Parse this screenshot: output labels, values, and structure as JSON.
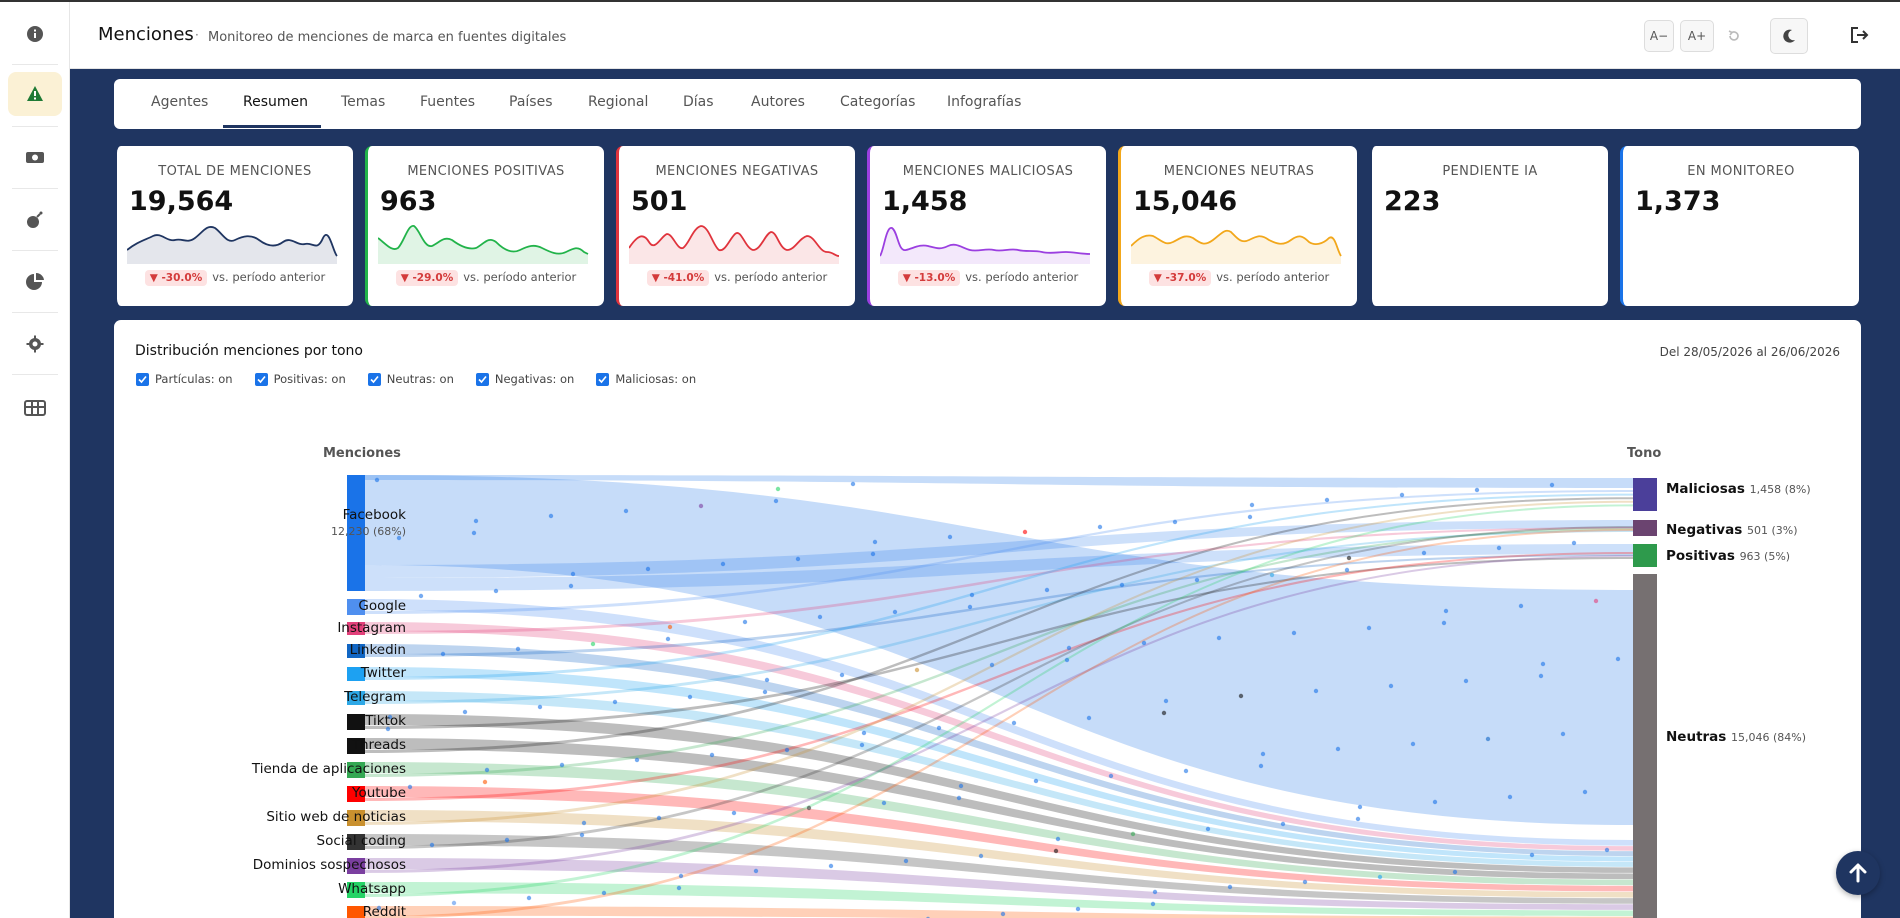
{
  "header": {
    "title": "Menciones",
    "subtitle": "Monitoreo de menciones de marca en fuentes digitales",
    "font_decrease": "A−",
    "font_increase": "A+"
  },
  "sidebar": {
    "items": [
      {
        "icon": "info-icon"
      },
      {
        "icon": "alert-triangle-icon",
        "active": true
      },
      {
        "icon": "money-icon"
      },
      {
        "icon": "bomb-icon"
      },
      {
        "icon": "pie-chart-icon"
      },
      {
        "icon": "gear-icon"
      },
      {
        "icon": "globe-table-icon"
      }
    ]
  },
  "tabs": [
    "Agentes",
    "Resumen",
    "Temas",
    "Fuentes",
    "Países",
    "Regional",
    "Días",
    "Autores",
    "Categorías",
    "Infografías"
  ],
  "active_tab": "Resumen",
  "kpis": [
    {
      "label": "TOTAL DE MENCIONES",
      "value": "19,564",
      "delta": "▼ -30.0%",
      "delta_text": "vs. período anterior",
      "color": "#1f3561"
    },
    {
      "label": "MENCIONES POSITIVAS",
      "value": "963",
      "delta": "▼ -29.0%",
      "delta_text": "vs. período anterior",
      "color": "#22b34a"
    },
    {
      "label": "MENCIONES NEGATIVAS",
      "value": "501",
      "delta": "▼ -41.0%",
      "delta_text": "vs. período anterior",
      "color": "#e0343d"
    },
    {
      "label": "MENCIONES MALICIOSAS",
      "value": "1,458",
      "delta": "▼ -13.0%",
      "delta_text": "vs. período anterior",
      "color": "#9b3fe0"
    },
    {
      "label": "MENCIONES NEUTRAS",
      "value": "15,046",
      "delta": "▼ -37.0%",
      "delta_text": "vs. período anterior",
      "color": "#f2a71b"
    },
    {
      "label": "PENDIENTE IA",
      "value": "223",
      "color": "#1f3561"
    },
    {
      "label": "EN MONITOREO",
      "value": "1,373",
      "color": "#1a73e8"
    }
  ],
  "panel": {
    "title": "Distribución menciones por tono",
    "date_range": "Del 28/05/2026 al 26/06/2026",
    "checks": [
      "Partículas: on",
      "Positivas: on",
      "Neutras: on",
      "Negativas: on",
      "Maliciosas: on"
    ],
    "left_header": "Menciones",
    "right_header": "Tono"
  },
  "chart_data": {
    "type": "sankey",
    "sources": [
      {
        "name": "Facebook",
        "count_label": "12,230 (68%)",
        "color": "#1a73e8",
        "weight": 12230
      },
      {
        "name": "Google",
        "color": "#4f8fef",
        "weight": 500
      },
      {
        "name": "Instagram",
        "color": "#e2407a",
        "weight": 400
      },
      {
        "name": "Linkedin",
        "color": "#1166c4",
        "weight": 400
      },
      {
        "name": "Twitter",
        "color": "#1da1f2",
        "weight": 400
      },
      {
        "name": "Telegram",
        "color": "#2ea8e6",
        "weight": 400
      },
      {
        "name": "Tiktok",
        "color": "#111111",
        "weight": 400
      },
      {
        "name": "Threads",
        "color": "#111111",
        "weight": 400
      },
      {
        "name": "Tienda de aplicaciones",
        "color": "#34a853",
        "weight": 400
      },
      {
        "name": "Youtube",
        "color": "#ff0000",
        "weight": 400
      },
      {
        "name": "Sitio web de noticias",
        "color": "#c9902e",
        "weight": 400
      },
      {
        "name": "Social coding",
        "color": "#333333",
        "weight": 400
      },
      {
        "name": "Dominios sospechosos",
        "color": "#7b3fa0",
        "weight": 400
      },
      {
        "name": "Whatsapp",
        "color": "#25d366",
        "weight": 400
      },
      {
        "name": "Reddit",
        "color": "#ff5700",
        "weight": 400
      }
    ],
    "targets": [
      {
        "name": "Maliciosas",
        "count_label": "1,458 (8%)",
        "value": 1458,
        "color": "#4b3f9a"
      },
      {
        "name": "Negativas",
        "count_label": "501 (3%)",
        "value": 501,
        "color": "#6b4470"
      },
      {
        "name": "Positivas",
        "count_label": "963 (5%)",
        "value": 963,
        "color": "#2e9a4c"
      },
      {
        "name": "Neutras",
        "count_label": "15,046 (84%)",
        "value": 15046,
        "color": "#767071"
      }
    ]
  }
}
